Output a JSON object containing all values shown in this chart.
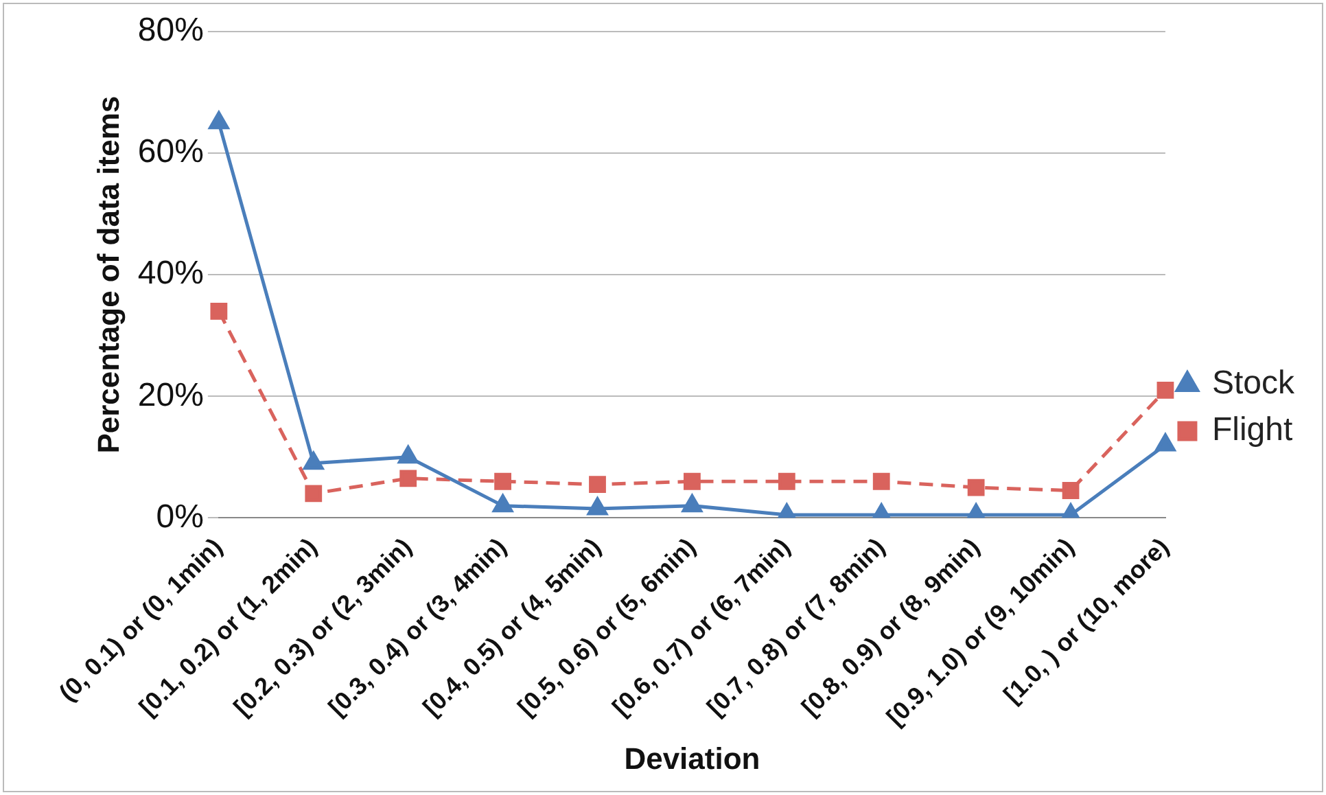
{
  "chart_data": {
    "type": "line",
    "xlabel": "Deviation",
    "ylabel": "Percentage of data items",
    "categories": [
      "(0, 0.1) or (0, 1min)",
      "[0.1, 0.2) or (1, 2min)",
      "[0.2, 0.3) or (2, 3min)",
      "[0.3, 0.4) or (3, 4min)",
      "[0.4, 0.5) or (4, 5min)",
      "[0.5, 0.6) or (5, 6min)",
      "[0.6, 0.7) or (6, 7min)",
      "[0.7, 0.8) or (7, 8min)",
      "[0.8, 0.9) or (8, 9min)",
      "[0.9, 1.0) or (9, 10min)",
      "[1.0, ) or (10, more)"
    ],
    "series": [
      {
        "name": "Stock",
        "color": "#4a7ebb",
        "marker": "triangle",
        "line_style": "solid",
        "values": [
          65,
          9,
          10,
          2,
          1.5,
          2,
          0.5,
          0.5,
          0.5,
          0.5,
          12
        ]
      },
      {
        "name": "Flight",
        "color": "#d9635d",
        "marker": "square",
        "line_style": "dashed",
        "values": [
          34,
          4,
          6.5,
          6,
          5.5,
          6,
          6,
          6,
          5,
          4.5,
          21
        ]
      }
    ],
    "ylim": [
      0,
      80
    ],
    "yticks": [
      {
        "value": 0,
        "label": "0%"
      },
      {
        "value": 20,
        "label": "20%"
      },
      {
        "value": 40,
        "label": "40%"
      },
      {
        "value": 60,
        "label": "60%"
      },
      {
        "value": 80,
        "label": "80%"
      }
    ],
    "grid": "y",
    "legend": "right"
  }
}
